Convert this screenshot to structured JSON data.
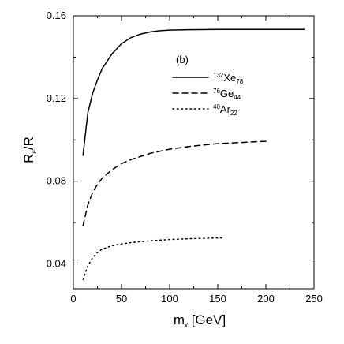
{
  "chart_data": {
    "type": "line",
    "panel_label": "(b)",
    "xlabel": {
      "main": "m",
      "sub": "x",
      "rest": " [GeV]"
    },
    "ylabel": {
      "main": "R",
      "sub": "e",
      "rest": "/R"
    },
    "xlim": [
      0,
      250
    ],
    "ylim": [
      0.028,
      0.16
    ],
    "xticks": [
      "0",
      "50",
      "100",
      "150",
      "200",
      "250"
    ],
    "xtick_values": [
      0,
      50,
      100,
      150,
      200,
      250
    ],
    "yticks": [
      "0.04",
      "0.08",
      "0.12",
      "0.16"
    ],
    "ytick_values": [
      0.04,
      0.08,
      0.12,
      0.16
    ],
    "grid": false,
    "legend_position": "upper-middle",
    "series": [
      {
        "name": "132Xe78",
        "legend": {
          "mass": "132",
          "element": "Xe",
          "z": "78"
        },
        "style": "solid",
        "x": [
          10,
          15,
          20,
          25,
          30,
          40,
          50,
          60,
          70,
          80,
          90,
          100,
          120,
          150,
          200,
          240
        ],
        "y": [
          0.0925,
          0.113,
          0.1225,
          0.129,
          0.1345,
          0.1415,
          0.1465,
          0.1495,
          0.1512,
          0.1522,
          0.1528,
          0.1531,
          0.1533,
          0.1534,
          0.1534,
          0.1534
        ]
      },
      {
        "name": "76Ge44",
        "legend": {
          "mass": "76",
          "element": "Ge",
          "z": "44"
        },
        "style": "dashed",
        "x": [
          10,
          15,
          20,
          25,
          30,
          40,
          50,
          60,
          80,
          100,
          120,
          150,
          200
        ],
        "y": [
          0.0585,
          0.0685,
          0.0745,
          0.0785,
          0.0815,
          0.0855,
          0.0885,
          0.0905,
          0.0935,
          0.0955,
          0.0968,
          0.0982,
          0.0993
        ]
      },
      {
        "name": "40Ar22",
        "legend": {
          "mass": "40",
          "element": "Ar",
          "z": "22"
        },
        "style": "dotted",
        "x": [
          10,
          15,
          20,
          25,
          30,
          40,
          50,
          60,
          80,
          100,
          120,
          155
        ],
        "y": [
          0.0325,
          0.039,
          0.043,
          0.0455,
          0.0472,
          0.0488,
          0.0497,
          0.0503,
          0.0512,
          0.0518,
          0.0522,
          0.0526
        ]
      }
    ]
  }
}
